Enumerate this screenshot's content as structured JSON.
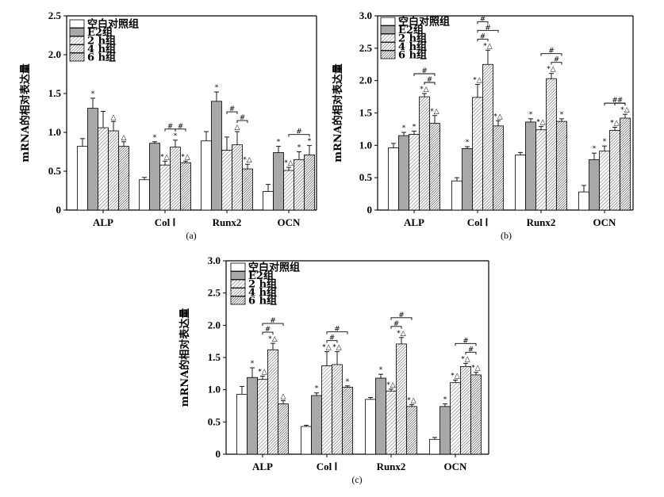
{
  "chart_data": [
    {
      "type": "bar",
      "panel": "(a)",
      "ylabel": "mRNA的相对表达量",
      "ylim": [
        0,
        2.5
      ],
      "yticks": [
        "0",
        "0.5",
        "1.0",
        "1.5",
        "2.0",
        "2.5"
      ],
      "categories": [
        "ALP",
        "Col Ⅰ",
        "Runx2",
        "OCN"
      ],
      "series": [
        {
          "name": "空白对照组",
          "values": [
            0.82,
            0.39,
            0.89,
            0.24
          ],
          "errors": [
            0.1,
            0.03,
            0.12,
            0.09
          ]
        },
        {
          "name": "E2组",
          "values": [
            1.31,
            0.86,
            1.4,
            0.74
          ],
          "errors": [
            0.13,
            0.02,
            0.12,
            0.08
          ]
        },
        {
          "name": "2 h组",
          "values": [
            1.06,
            0.58,
            0.77,
            0.51
          ],
          "errors": [
            0.21,
            0.05,
            0.17,
            0.04
          ]
        },
        {
          "name": "4 h组",
          "values": [
            1.02,
            0.81,
            0.84,
            0.65
          ],
          "errors": [
            0.12,
            0.09,
            0.17,
            0.1
          ]
        },
        {
          "name": "6 h组",
          "values": [
            0.82,
            0.61,
            0.53,
            0.71
          ],
          "errors": [
            0.06,
            0.02,
            0.06,
            0.12
          ]
        }
      ],
      "annotations": [
        [
          [
            "",
            "*",
            "",
            "△",
            "△"
          ]
        ],
        [
          [
            "",
            "*",
            "*△",
            "*",
            "*△"
          ]
        ],
        [
          [
            "",
            "*",
            "",
            "△",
            "*△"
          ]
        ],
        [
          [
            "",
            "*",
            "*△",
            "*",
            "*"
          ]
        ]
      ]
    },
    {
      "type": "bar",
      "panel": "(b)",
      "ylabel": "mRNA的相对表达量",
      "ylim": [
        0,
        3.0
      ],
      "yticks": [
        "0",
        "0.5",
        "1.0",
        "1.5",
        "2.0",
        "2.5",
        "3.0"
      ],
      "categories": [
        "ALP",
        "Col Ⅰ",
        "Runx2",
        "OCN"
      ],
      "series": [
        {
          "name": "空白对照组",
          "values": [
            0.96,
            0.45,
            0.85,
            0.28
          ],
          "errors": [
            0.07,
            0.05,
            0.04,
            0.1
          ]
        },
        {
          "name": "E2组",
          "values": [
            1.15,
            0.95,
            1.36,
            0.78
          ],
          "errors": [
            0.05,
            0.03,
            0.05,
            0.1
          ]
        },
        {
          "name": "2 h组",
          "values": [
            1.17,
            1.74,
            1.24,
            0.91
          ],
          "errors": [
            0.05,
            0.2,
            0.05,
            0.08
          ]
        },
        {
          "name": "4 h组",
          "values": [
            1.75,
            2.25,
            2.03,
            1.23
          ],
          "errors": [
            0.05,
            0.22,
            0.08,
            0.05
          ]
        },
        {
          "name": "6 h组",
          "values": [
            1.34,
            1.3,
            1.37,
            1.42
          ],
          "errors": [
            0.12,
            0.08,
            0.04,
            0.06
          ]
        }
      ],
      "annotations": [
        [
          [
            "",
            "*",
            "*",
            "*△",
            "*△"
          ]
        ],
        [
          [
            "",
            "*",
            "*△",
            "*△",
            "*△"
          ]
        ],
        [
          [
            "",
            "*",
            "*△",
            "*△",
            "*"
          ]
        ],
        [
          [
            "",
            "*",
            "*",
            "*△",
            "*△"
          ]
        ]
      ]
    },
    {
      "type": "bar",
      "panel": "(c)",
      "ylabel": "mRNA的相对表达量",
      "ylim": [
        0,
        3.0
      ],
      "yticks": [
        "0",
        "0.5",
        "1.0",
        "1.5",
        "2.0",
        "2.5",
        "3.0"
      ],
      "categories": [
        "ALP",
        "Col Ⅰ",
        "Runx2",
        "OCN"
      ],
      "series": [
        {
          "name": "空白对照组",
          "values": [
            0.93,
            0.43,
            0.85,
            0.23
          ],
          "errors": [
            0.12,
            0.02,
            0.03,
            0.03
          ]
        },
        {
          "name": "E2组",
          "values": [
            1.19,
            0.91,
            1.18,
            0.74
          ],
          "errors": [
            0.15,
            0.04,
            0.06,
            0.04
          ]
        },
        {
          "name": "2 h组",
          "values": [
            1.16,
            1.37,
            0.98,
            1.11
          ],
          "errors": [
            0.05,
            0.22,
            0.03,
            0.04
          ]
        },
        {
          "name": "4 h组",
          "values": [
            1.62,
            1.39,
            1.71,
            1.36
          ],
          "errors": [
            0.1,
            0.2,
            0.1,
            0.05
          ]
        },
        {
          "name": "6 h组",
          "values": [
            0.78,
            1.04,
            0.74,
            1.23
          ],
          "errors": [
            0.05,
            0.02,
            0.03,
            0.04
          ]
        }
      ],
      "annotations": [
        [
          [
            "",
            "*",
            "*△",
            "*△",
            "△"
          ]
        ],
        [
          [
            "",
            "*",
            "*△",
            "*△",
            "*"
          ]
        ],
        [
          [
            "",
            "*",
            "*△",
            "*△",
            "*△"
          ]
        ],
        [
          [
            "",
            "*",
            "*△",
            "*△",
            "*△"
          ]
        ]
      ]
    }
  ]
}
